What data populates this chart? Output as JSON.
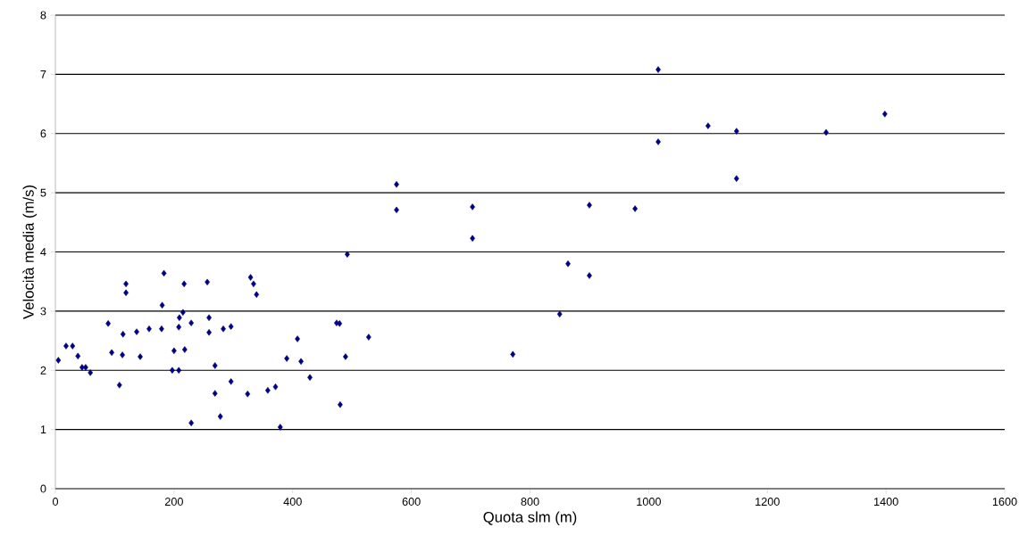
{
  "chart_data": {
    "type": "scatter",
    "xlabel": "Quota slm (m)",
    "ylabel": "Velocità media (m/s)",
    "x": [
      5,
      18,
      29,
      38,
      45,
      51,
      59,
      89,
      95,
      108,
      114,
      113,
      119,
      119,
      137,
      143,
      158,
      179,
      180,
      183,
      197,
      200,
      208,
      208,
      209,
      215,
      217,
      218,
      229,
      229,
      256,
      259,
      259,
      269,
      269,
      278,
      283,
      296,
      296,
      324,
      329,
      334,
      339,
      358,
      371,
      379,
      390,
      408,
      414,
      429,
      474,
      479,
      480,
      489,
      492,
      528,
      575,
      575,
      703,
      703,
      771,
      850,
      864,
      900,
      900,
      977,
      1016,
      1016,
      1100,
      1148,
      1148,
      1299,
      1398
    ],
    "values": [
      2.17,
      2.41,
      2.41,
      2.24,
      2.05,
      2.05,
      1.96,
      2.79,
      2.3,
      1.75,
      2.61,
      2.26,
      3.46,
      3.31,
      2.65,
      2.23,
      2.7,
      2.7,
      3.1,
      3.64,
      2.0,
      2.33,
      2.73,
      2.0,
      2.89,
      2.98,
      3.46,
      2.35,
      1.11,
      2.8,
      3.49,
      2.64,
      2.89,
      2.08,
      1.61,
      1.22,
      2.7,
      2.74,
      1.81,
      1.6,
      3.57,
      3.46,
      3.28,
      1.66,
      1.72,
      1.04,
      2.2,
      2.53,
      2.15,
      1.88,
      2.8,
      2.79,
      1.42,
      2.23,
      3.96,
      2.56,
      5.14,
      4.71,
      4.76,
      4.23,
      2.27,
      2.95,
      3.8,
      4.79,
      3.6,
      4.73,
      7.08,
      5.86,
      6.13,
      6.04,
      5.24,
      6.02,
      6.33
    ],
    "color": "#000080",
    "marker": "diamond",
    "xlim": [
      0,
      1600
    ],
    "xticks": [
      0,
      200,
      400,
      600,
      800,
      1000,
      1200,
      1400,
      1600
    ],
    "ylim": [
      0,
      8
    ],
    "yticks": [
      0,
      1,
      2,
      3,
      4,
      5,
      6,
      7,
      8
    ],
    "grid": "y"
  }
}
